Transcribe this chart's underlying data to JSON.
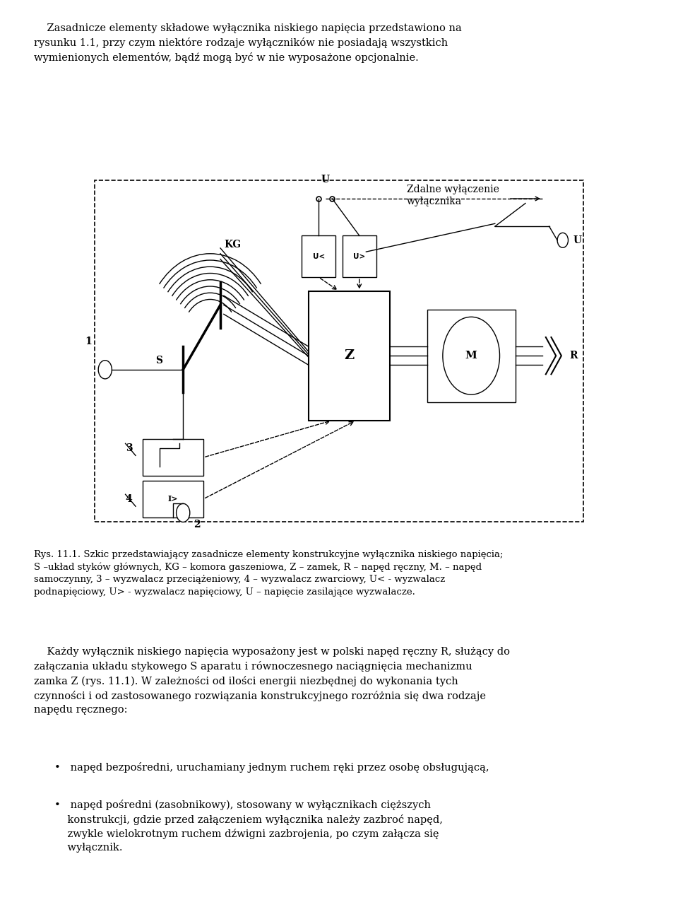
{
  "title_text": "Zasadnicze elementy składowe wyłącznika niskiego napięcia przedstawiono na\nrysunku 1.1, przy czym niektóre rodzaje wyłączników nie posiadają wszystkich\nwymienionych elementów, bądź mogą być w nie wyposażone opcjonalnie.",
  "caption": "Rys. 11.1. Szkic przedstawiający zasadnicze elementy konstrukcyjne wyłącznika niskiego napięcia;\nS –układ styków głównych, KG – komora gaszeniowa, Z – zamek, R – napęd ręczny, M. – napęd\nsamoczynny, 3 – wyzwalacz przeciążeniowy, 4 – wyzwalacz zwarciowy, U< - wyzwalacz\npodnapięciowy, U> - wyzwalacz napięciowy, U – napięcie zasilające wyzwalacze.",
  "para2": "Każdy wyłącznik niskiego napięcia wyposażony jest w napęd ręczny R, służący do\nzałączania układu stykowego S aparatu i równoczesnego naciągnięcia mechanizmu\nzamka Z (rys. 11.1). W zależności od ilości energii niezbędnej do wykonania tych\nczynności i od zastosowanego rozwiązania konstrukcyjnego rozróżnia się dwa rodzaje\nnapędu ręcznego:",
  "bullet1": "napęd bezpośredni, uruchamiany jednym ruchem ręki przez osobę obsługującą,",
  "bullet2": "napęd pośredni (zasobnikowy), stosowany w wyłącznikach cięższych\nkonstrukcji, gdzie przed załączeniem wyłącznika należy zazbroć napęd,\nzwykle wielokrotnym ruchem dźwigni zazbrojenia, po czym załącza się\nwyłącznik."
}
